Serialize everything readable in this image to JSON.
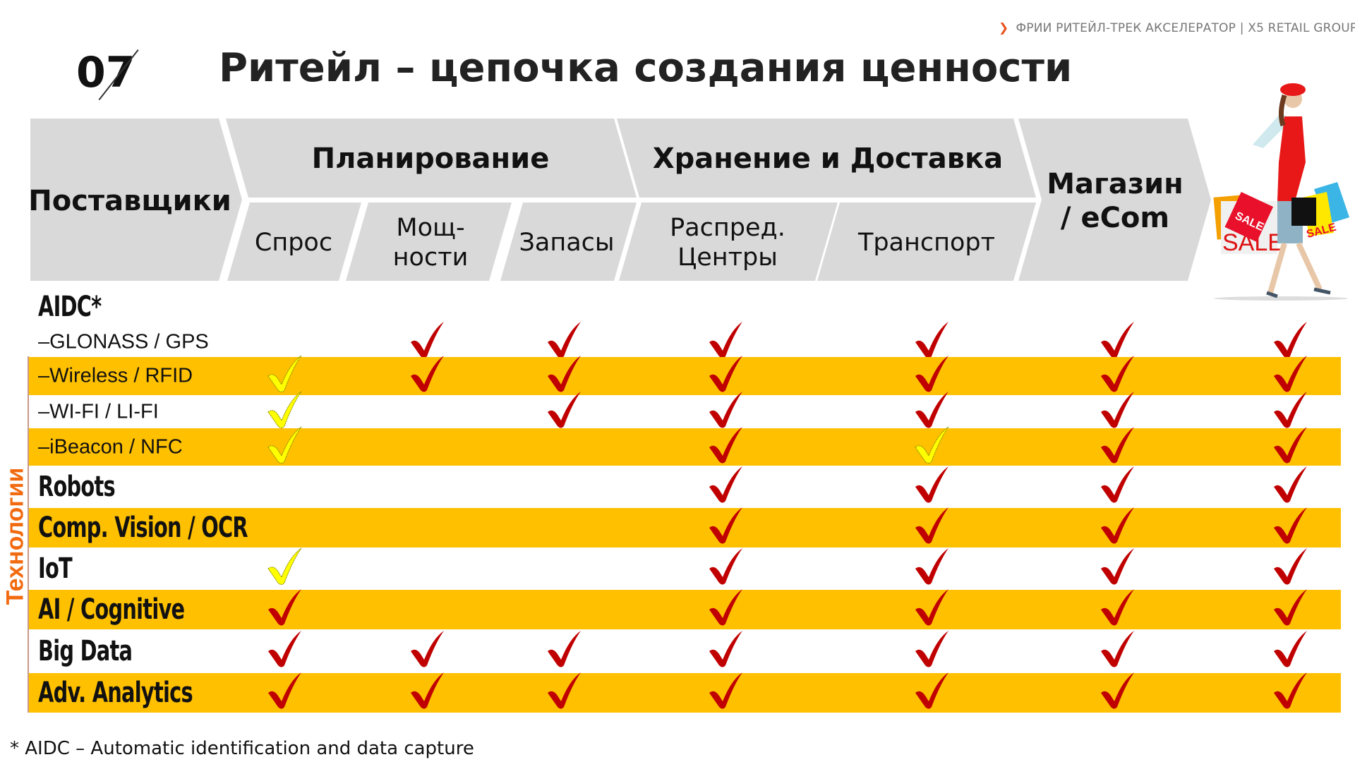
{
  "tagline": {
    "text": "ФРИИ РИТЕЙЛ-ТРЕК АКСЕЛЕРАТОР  |  X5 RETAIL GROUP",
    "arrow_icon": "chevron-right-icon",
    "arrow_color": "#E8531F"
  },
  "slide_number": "07",
  "title": "Ритейл – цепочка создания ценности",
  "header": {
    "suppliers": "Поставщики",
    "planning": "Планирование",
    "storage": "Хранение и Доставка",
    "store_line1": "Магазин",
    "store_line2": "/ eCom",
    "demand": "Спрос",
    "capacity_line1": "Мощ-",
    "capacity_line2": "ности",
    "stock": "Запасы",
    "dc_line1": "Распред.",
    "dc_line2": "Центры",
    "transport": "Транспорт",
    "shopper_image": "shopper-with-sale-bags-illustration"
  },
  "side_label": "Технологии",
  "group_label": "AIDC*",
  "rows": [
    {
      "label": "–GLONASS / GPS",
      "style": "sub",
      "checks": [
        "",
        "R",
        "R",
        "R",
        "R",
        "R",
        "R"
      ]
    },
    {
      "label": "–Wireless  / RFID",
      "style": "sub",
      "checks": [
        "Y",
        "R",
        "R",
        "R",
        "R",
        "R",
        "R"
      ]
    },
    {
      "label": "–WI-FI / LI-FI",
      "style": "sub",
      "checks": [
        "Y",
        "",
        "R",
        "R",
        "R",
        "R",
        "R"
      ]
    },
    {
      "label": "–iBeacon / NFC",
      "style": "sub",
      "checks": [
        "Y",
        "",
        "",
        "R",
        "Y",
        "R",
        "R"
      ]
    },
    {
      "label": "Robots",
      "style": "big",
      "checks": [
        "",
        "",
        "",
        "R",
        "R",
        "R",
        "R"
      ]
    },
    {
      "label": "Comp. Vision / OCR",
      "style": "big",
      "checks": [
        "",
        "",
        "",
        "R",
        "R",
        "R",
        "R"
      ]
    },
    {
      "label": "IoT",
      "style": "big",
      "checks": [
        "Y",
        "",
        "",
        "R",
        "R",
        "R",
        "R"
      ]
    },
    {
      "label": "AI / Cognitive",
      "style": "big",
      "checks": [
        "R",
        "",
        "",
        "R",
        "R",
        "R",
        "R"
      ]
    },
    {
      "label": "Big Data",
      "style": "big",
      "checks": [
        "R",
        "R",
        "R",
        "R",
        "R",
        "R",
        "R"
      ]
    },
    {
      "label": "Adv. Analytics",
      "style": "big",
      "checks": [
        "R",
        "R",
        "R",
        "R",
        "R",
        "R",
        "R"
      ]
    }
  ],
  "check_legend": {
    "R": "#C00000",
    "Y": "#FFFF00"
  },
  "colors": {
    "stripe": "#FFC000",
    "header_gray": "#D9D9D9",
    "side_label": "#F26A10"
  },
  "footnote": "* AIDC – Automatic identification and data capture"
}
